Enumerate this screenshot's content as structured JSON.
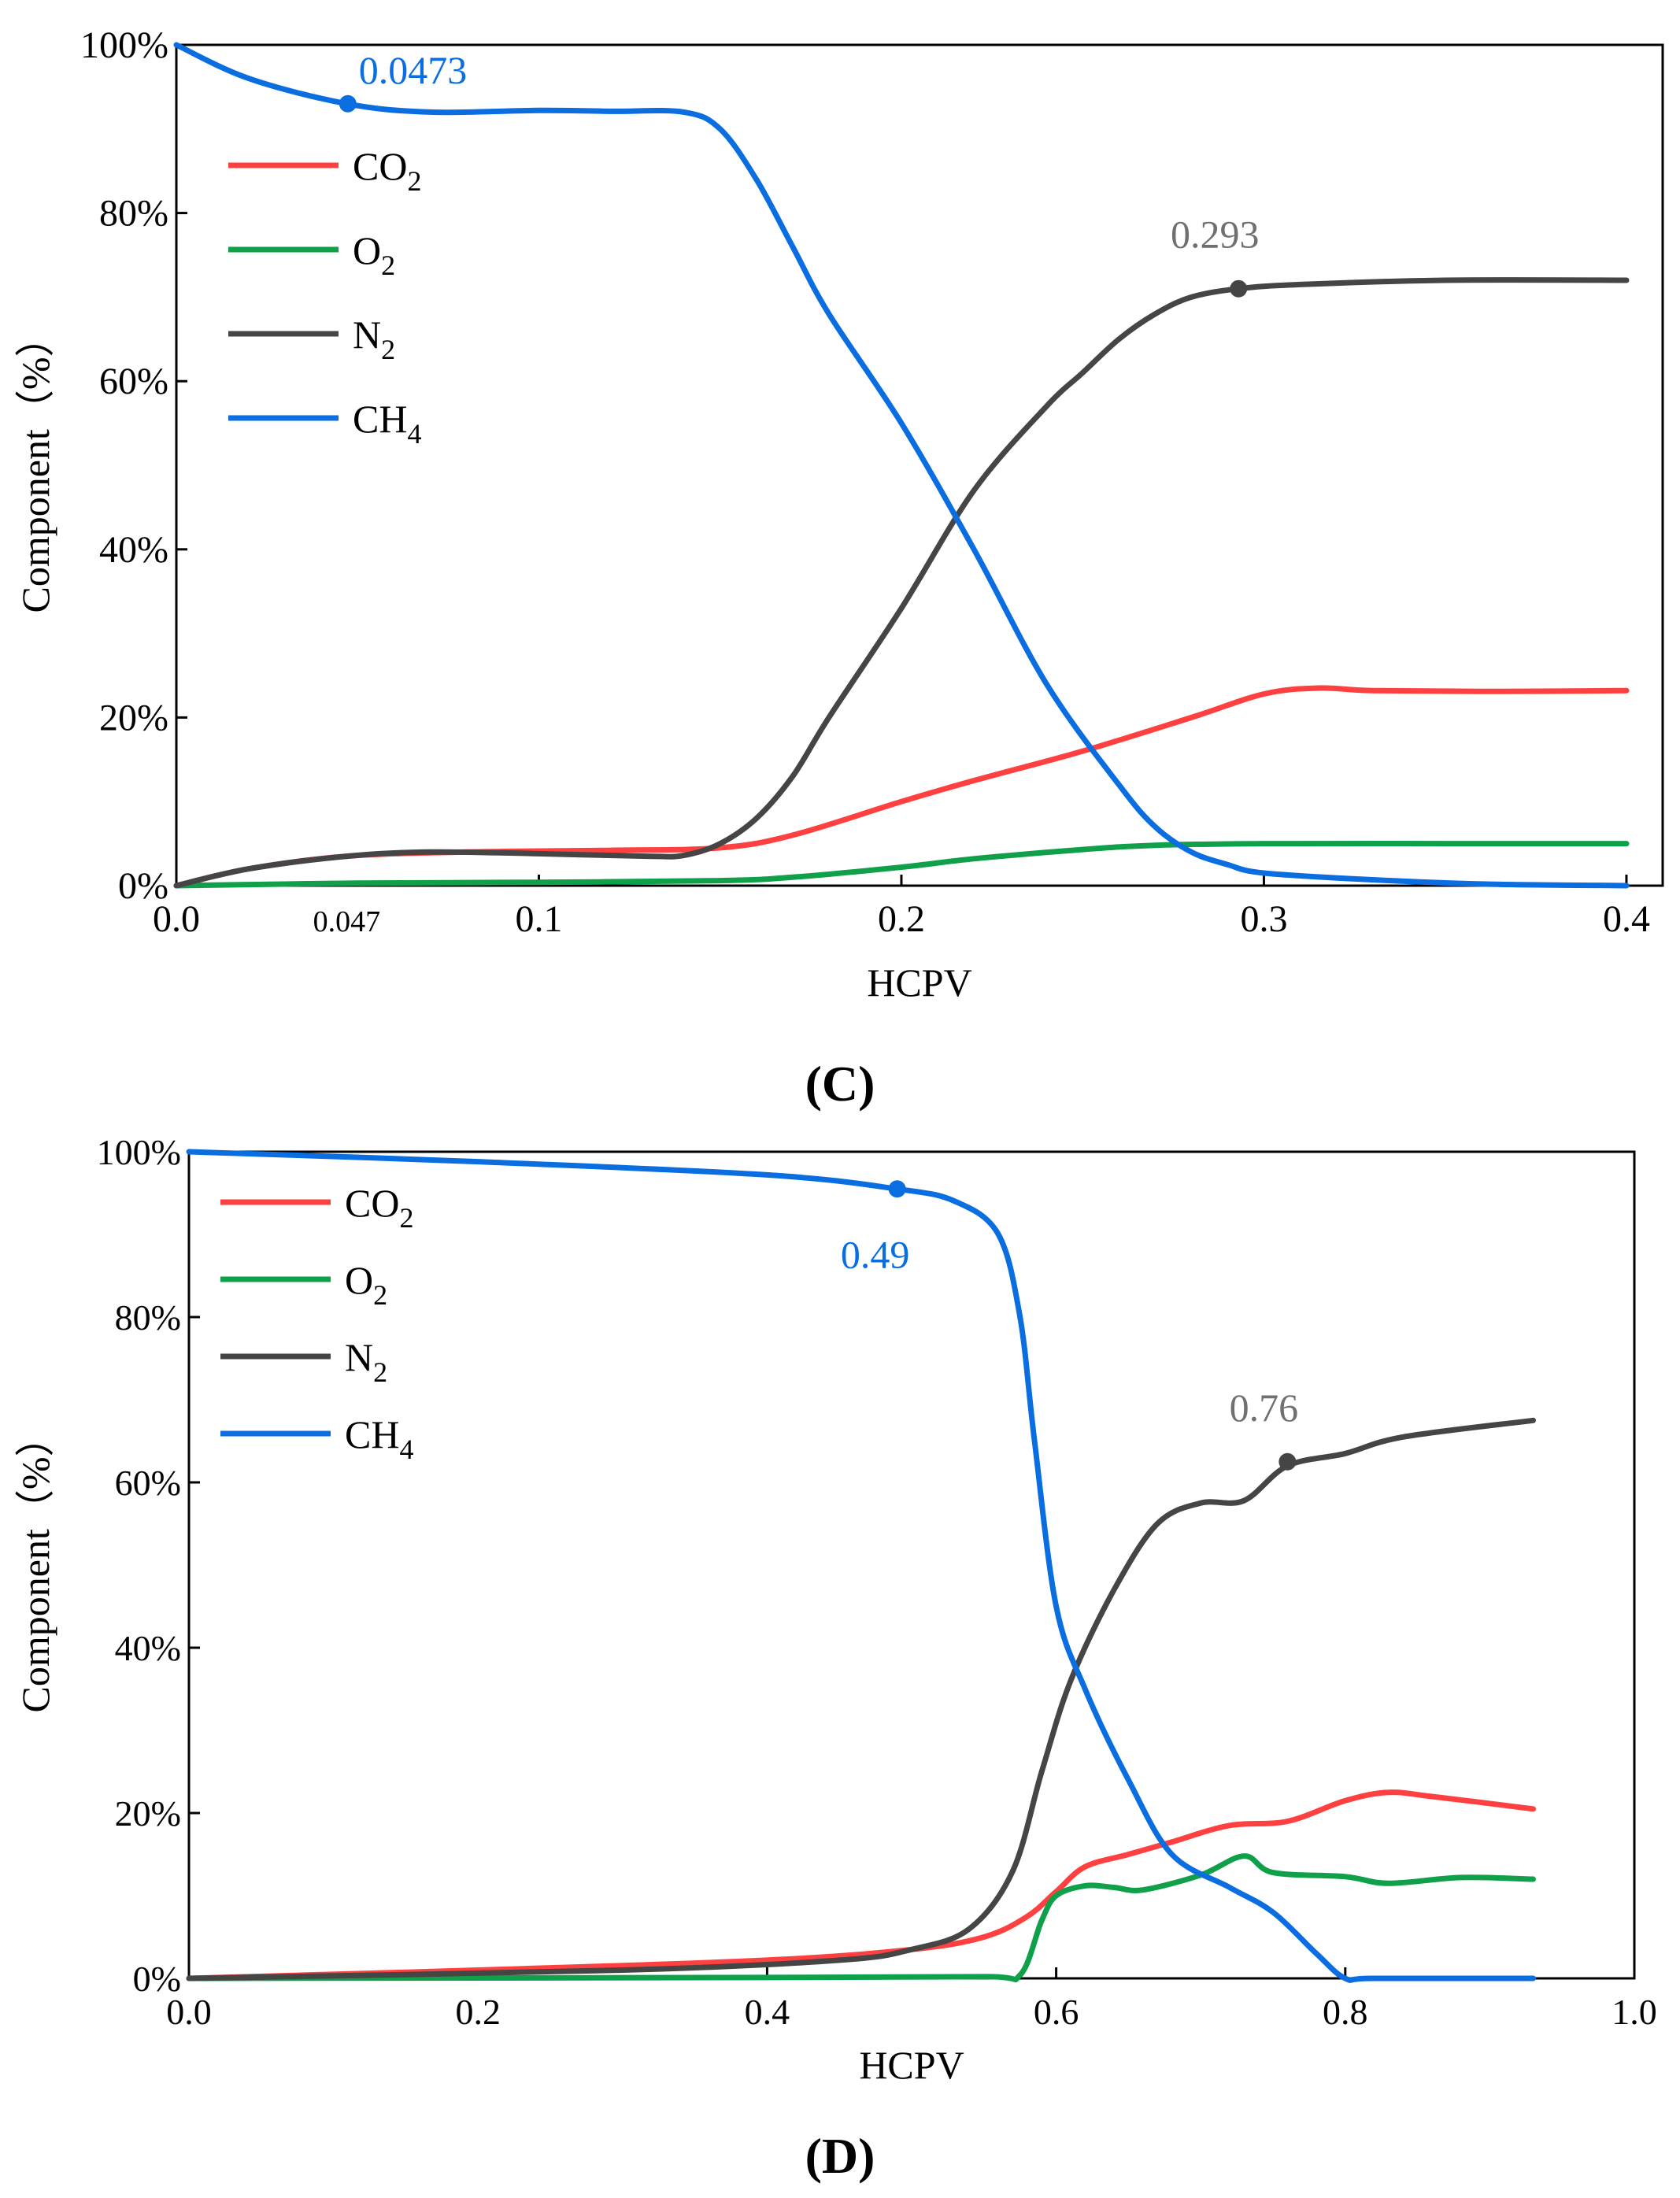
{
  "chart_data": [
    {
      "type": "line",
      "panel_label": "C",
      "xlabel": "HCPV",
      "ylabel": "Component（%）",
      "xlim": [
        0.0,
        0.41
      ],
      "ylim": [
        0,
        100
      ],
      "xticks": [
        0.0,
        0.1,
        0.2,
        0.3,
        0.4
      ],
      "xtick_labels": [
        "0.0",
        "0.1",
        "0.2",
        "0.3",
        "0.4"
      ],
      "extra_xtick": {
        "value": 0.047,
        "label": "0.047"
      },
      "yticks": [
        0,
        20,
        40,
        60,
        80,
        100
      ],
      "ytick_labels": [
        "0%",
        "20%",
        "40%",
        "60%",
        "80%",
        "100%"
      ],
      "legend_position": "top-left",
      "series": [
        {
          "key": "co2",
          "name": "CO",
          "sub": "2",
          "color": "#ff4040",
          "x": [
            0,
            0.02,
            0.047,
            0.08,
            0.12,
            0.15,
            0.17,
            0.2,
            0.22,
            0.25,
            0.28,
            0.3,
            0.315,
            0.33,
            0.36,
            0.4
          ],
          "y": [
            0,
            2,
            3.5,
            4,
            4.2,
            4.5,
            6,
            10,
            12.5,
            16,
            20,
            22.8,
            23.5,
            23.2,
            23.1,
            23.2
          ]
        },
        {
          "key": "o2",
          "name": "O",
          "sub": "2",
          "color": "#10a04a",
          "x": [
            0,
            0.05,
            0.1,
            0.15,
            0.17,
            0.2,
            0.22,
            0.25,
            0.27,
            0.3,
            0.35,
            0.4
          ],
          "y": [
            0,
            0.3,
            0.4,
            0.6,
            1,
            2.2,
            3.2,
            4.3,
            4.8,
            5,
            5,
            5
          ]
        },
        {
          "key": "n2",
          "name": "N",
          "sub": "2",
          "color": "#454545",
          "x": [
            0,
            0.02,
            0.047,
            0.07,
            0.1,
            0.13,
            0.14,
            0.15,
            0.16,
            0.17,
            0.18,
            0.2,
            0.22,
            0.24,
            0.25,
            0.26,
            0.27,
            0.28,
            0.293,
            0.31,
            0.35,
            0.4
          ],
          "y": [
            0,
            2,
            3.5,
            4,
            3.8,
            3.5,
            3.6,
            5,
            8,
            13,
            20,
            33,
            47,
            57,
            61,
            65,
            68,
            70,
            71,
            71.5,
            72,
            72
          ]
        },
        {
          "key": "ch4",
          "name": "CH",
          "sub": "4",
          "color": "#0a6ee0",
          "x": [
            0,
            0.02,
            0.047,
            0.07,
            0.1,
            0.12,
            0.14,
            0.15,
            0.16,
            0.17,
            0.18,
            0.2,
            0.22,
            0.24,
            0.26,
            0.27,
            0.28,
            0.29,
            0.3,
            0.33,
            0.36,
            0.4
          ],
          "y": [
            100,
            96,
            93,
            92,
            92.2,
            92.1,
            92,
            90,
            84,
            76,
            68,
            55,
            40,
            24,
            12,
            7,
            4,
            2.5,
            1.5,
            0.7,
            0.2,
            0
          ]
        }
      ],
      "annotations": [
        {
          "series": "ch4",
          "x": 0.0473,
          "y": 93,
          "text": "0.0473",
          "color": "#0a6ee0",
          "text_pos": "above-right"
        },
        {
          "series": "n2",
          "x": 0.293,
          "y": 71,
          "text": "0.293",
          "color": "#707070",
          "text_pos": "above-left"
        }
      ]
    },
    {
      "type": "line",
      "panel_label": "D",
      "xlabel": "HCPV",
      "ylabel": "Component（%）",
      "xlim": [
        0.0,
        1.0
      ],
      "ylim": [
        0,
        100
      ],
      "xticks": [
        0.0,
        0.2,
        0.4,
        0.6,
        0.8,
        1.0
      ],
      "xtick_labels": [
        "0.0",
        "0.2",
        "0.4",
        "0.6",
        "0.8",
        "1.0"
      ],
      "yticks": [
        0,
        20,
        40,
        60,
        80,
        100
      ],
      "ytick_labels": [
        "0%",
        "20%",
        "40%",
        "60%",
        "80%",
        "100%"
      ],
      "legend_position": "top-left",
      "series": [
        {
          "key": "co2",
          "name": "CO",
          "sub": "2",
          "color": "#ff4040",
          "x": [
            0,
            0.2,
            0.4,
            0.5,
            0.55,
            0.58,
            0.6,
            0.62,
            0.65,
            0.68,
            0.72,
            0.76,
            0.8,
            0.83,
            0.86,
            0.93
          ],
          "y": [
            0,
            1,
            2.2,
            3.5,
            5,
            7.5,
            10.5,
            13.5,
            15,
            16.5,
            18.5,
            19,
            21.5,
            22.5,
            22,
            20.5
          ]
        },
        {
          "key": "o2",
          "name": "O",
          "sub": "2",
          "color": "#10a04a",
          "x": [
            0,
            0.4,
            0.55,
            0.575,
            0.59,
            0.6,
            0.62,
            0.64,
            0.66,
            0.7,
            0.73,
            0.75,
            0.8,
            0.83,
            0.88,
            0.93
          ],
          "y": [
            0,
            0.1,
            0.2,
            0.4,
            7,
            10,
            11.2,
            11,
            10.7,
            12.5,
            14.8,
            12.8,
            12.3,
            11.5,
            12.2,
            12
          ]
        },
        {
          "key": "n2",
          "name": "N",
          "sub": "2",
          "color": "#454545",
          "x": [
            0,
            0.3,
            0.45,
            0.5,
            0.54,
            0.57,
            0.59,
            0.61,
            0.64,
            0.67,
            0.7,
            0.73,
            0.76,
            0.8,
            0.84,
            0.93
          ],
          "y": [
            0,
            1,
            2.2,
            3.5,
            6,
            13,
            25,
            36,
            47,
            55,
            57.5,
            57.8,
            62,
            63.5,
            65.5,
            67.5
          ]
        },
        {
          "key": "ch4",
          "name": "CH",
          "sub": "4",
          "color": "#0a6ee0",
          "x": [
            0,
            0.2,
            0.4,
            0.49,
            0.53,
            0.56,
            0.575,
            0.585,
            0.6,
            0.62,
            0.65,
            0.68,
            0.72,
            0.75,
            0.78,
            0.8,
            0.82,
            0.93
          ],
          "y": [
            100,
            98.8,
            97.2,
            95.5,
            94,
            90,
            80,
            65,
            45,
            35,
            24,
            15,
            11,
            8,
            3,
            0,
            0,
            0
          ]
        }
      ],
      "annotations": [
        {
          "series": "ch4",
          "x": 0.49,
          "y": 95.5,
          "text": "0.49",
          "color": "#0a6ee0",
          "text_pos": "below-left"
        },
        {
          "series": "n2",
          "x": 0.76,
          "y": 62.5,
          "text": "0.76",
          "color": "#707070",
          "text_pos": "above-left"
        }
      ]
    }
  ]
}
